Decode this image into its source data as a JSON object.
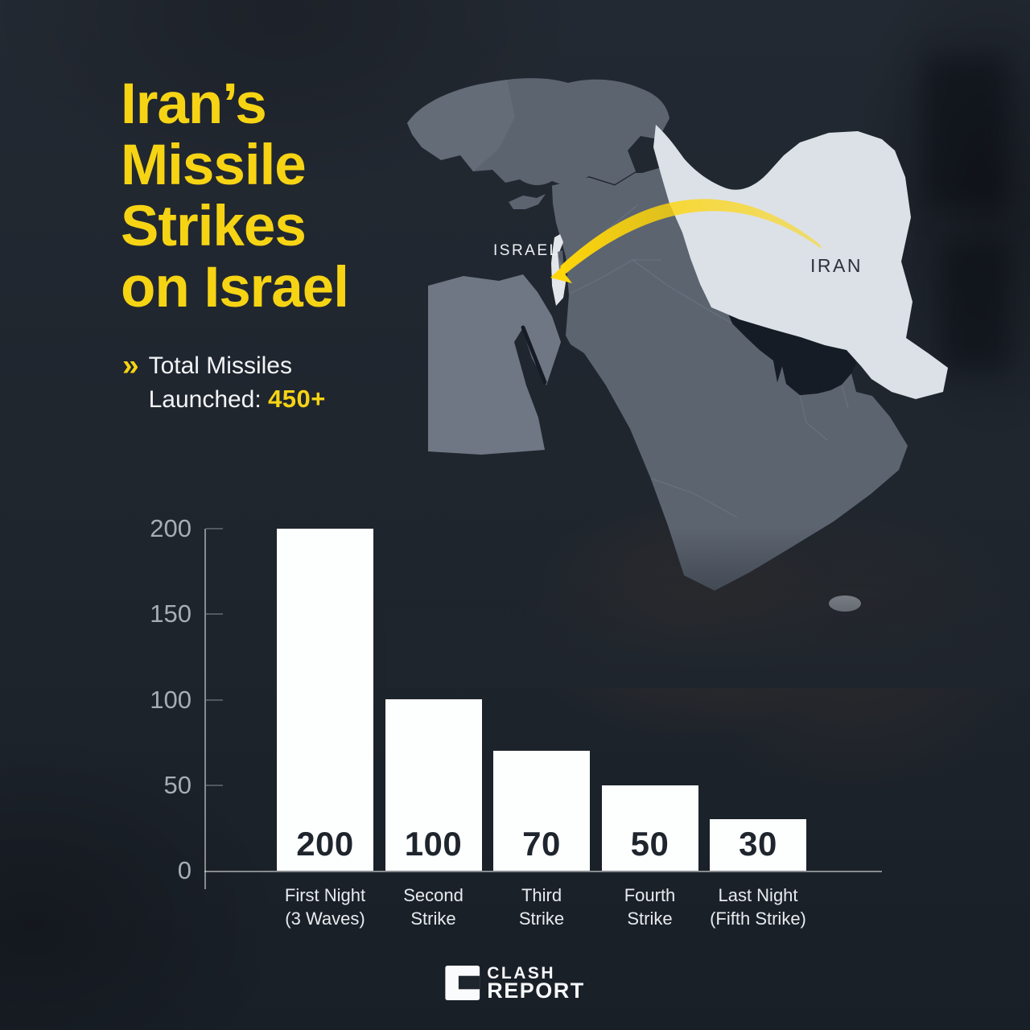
{
  "theme": {
    "yellow": "#F6D414",
    "text_light": "#F2F4F6",
    "bg": "#1F252D"
  },
  "header": {
    "title_lines": [
      "Iran’s",
      "Missile",
      "Strikes",
      "on Israel"
    ],
    "subtitle_bullet": "»",
    "subtitle_line1": "Total Missiles",
    "subtitle_line2_label": "Launched:",
    "subtitle_line2_value": "450+"
  },
  "map": {
    "labels": {
      "israel": "ISRAEL",
      "iran": "IRAN"
    },
    "colors": {
      "land": "#5C6470",
      "land_light": "#6E7683",
      "egypt": "#6F7784",
      "highlight": "#DCE1E7",
      "israel": "#E3E7EB",
      "sea": "#161C25",
      "arrow": "#FFD60A",
      "border_line": "#8B93A0",
      "iran_label": "#2B323C",
      "israel_label": "#EEF1F4",
      "fade": "#1F252D"
    }
  },
  "chart_data": {
    "type": "bar",
    "title": "Iran's Missile Strikes on Israel",
    "xlabel": "",
    "ylabel": "",
    "categories": [
      [
        "First Night",
        "(3 Waves)"
      ],
      [
        "Second",
        "Strike"
      ],
      [
        "Third",
        "Strike"
      ],
      [
        "Fourth",
        "Strike"
      ],
      [
        "Last Night",
        "(Fifth Strike)"
      ]
    ],
    "values": [
      200,
      100,
      70,
      50,
      30
    ],
    "yticks": [
      0,
      50,
      100,
      150,
      200
    ],
    "ylim": [
      0,
      200
    ],
    "grid": false,
    "legend": false,
    "bar_color": "#FDFEFE",
    "value_label_color": "#1F252D",
    "tick_label_color": "#A7ADB5",
    "category_label_color": "#E8EBEE",
    "axis_color": "rgba(244,246,248,0.5)"
  },
  "footer": {
    "brand_line1": "CLASH",
    "brand_line2": "REPORT"
  }
}
